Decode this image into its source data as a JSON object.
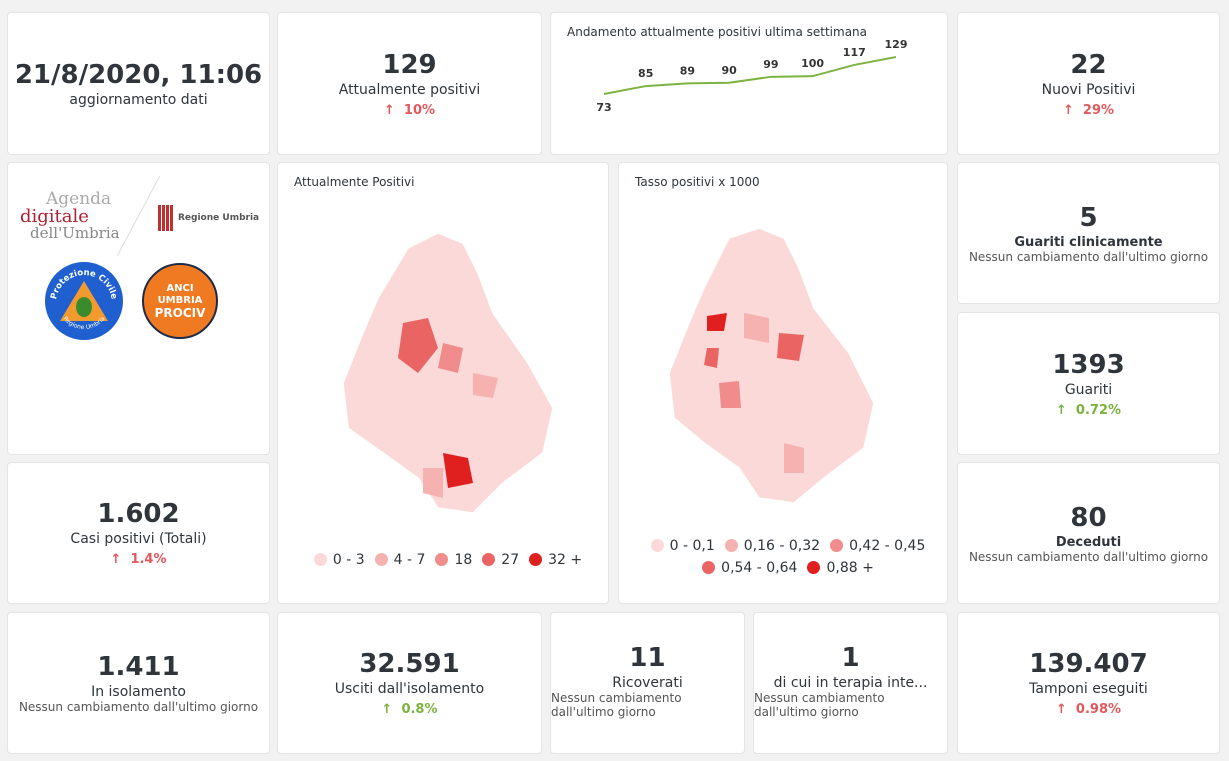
{
  "update": {
    "datetime": "21/8/2020, 11:06",
    "label": "aggiornamento dati"
  },
  "attualmente_positivi": {
    "value": "129",
    "label": "Attualmente positivi",
    "delta": "10%",
    "trend": "up"
  },
  "trend_chart": {
    "title": "Andamento attualmente positivi ultima settimana",
    "chart_data": {
      "type": "line",
      "values": [
        73,
        85,
        89,
        90,
        99,
        100,
        117,
        129
      ],
      "color": "#7cb342"
    }
  },
  "nuovi_positivi": {
    "value": "22",
    "label": "Nuovi Positivi",
    "delta": "29%",
    "trend": "up"
  },
  "logos": {
    "agenda": [
      "Agenda",
      "digitale",
      "dell'Umbria"
    ],
    "regione": "Regione Umbria",
    "protezione": "Protezione Civile",
    "protezione_sub": "Regione Umbria",
    "anci": [
      "ANCI",
      "UMBRIA",
      "PROCIV"
    ]
  },
  "map1": {
    "title": "Attualmente Positivi",
    "legend": [
      {
        "label": "0 - 3",
        "color": "#fbd9d9"
      },
      {
        "label": "4 - 7",
        "color": "#f6b1b1"
      },
      {
        "label": "18",
        "color": "#f08c8c"
      },
      {
        "label": "27",
        "color": "#ea6464"
      },
      {
        "label": "32 +",
        "color": "#e0201f"
      }
    ]
  },
  "map2": {
    "title": "Tasso positivi x 1000",
    "legend": [
      {
        "label": "0 - 0,1",
        "color": "#fbd9d9"
      },
      {
        "label": "0,16 - 0,32",
        "color": "#f6b1b1"
      },
      {
        "label": "0,42 - 0,45",
        "color": "#f08c8c"
      },
      {
        "label": "0,54 - 0,64",
        "color": "#ea6464"
      },
      {
        "label": "0,88 +",
        "color": "#e0201f"
      }
    ]
  },
  "guariti_clin": {
    "value": "5",
    "label": "Guariti clinicamente",
    "note": "Nessun cambiamento dall'ultimo giorno"
  },
  "guariti": {
    "value": "1393",
    "label": "Guariti",
    "delta": "0.72%",
    "trend": "up"
  },
  "deceduti": {
    "value": "80",
    "label": "Deceduti",
    "note": "Nessun cambiamento dall'ultimo giorno"
  },
  "casi_totali": {
    "value": "1.602",
    "label": "Casi positivi (Totali)",
    "delta": "1.4%",
    "trend": "up"
  },
  "isolamento": {
    "value": "1.411",
    "label": "In isolamento",
    "note": "Nessun cambiamento dall'ultimo giorno"
  },
  "usciti": {
    "value": "32.591",
    "label": "Usciti dall'isolamento",
    "delta": "0.8%",
    "trend": "up"
  },
  "ricoverati": {
    "value": "11",
    "label": "Ricoverati",
    "note": [
      "Nessun cambiamento",
      "dall'ultimo giorno"
    ]
  },
  "terapia": {
    "value": "1",
    "label": "di cui in terapia inte...",
    "note": [
      "Nessun cambiamento",
      "dall'ultimo giorno"
    ]
  },
  "tamponi": {
    "value": "139.407",
    "label": "Tamponi eseguiti",
    "delta": "0.98%",
    "trend": "up"
  },
  "arrow": "↑"
}
